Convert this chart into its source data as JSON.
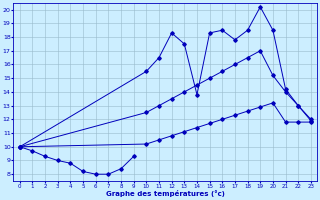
{
  "yticks": [
    8,
    9,
    10,
    11,
    12,
    13,
    14,
    15,
    16,
    17,
    18,
    19,
    20
  ],
  "xticks": [
    0,
    1,
    2,
    3,
    4,
    5,
    6,
    7,
    8,
    9,
    10,
    11,
    12,
    13,
    14,
    15,
    16,
    17,
    18,
    19,
    20,
    21,
    22,
    23
  ],
  "xlabel": "Graphe des températures (°c)",
  "line_color": "#0000bb",
  "bg_color": "#cceeff",
  "grid_color": "#99bbcc",
  "marker": "D",
  "markersize": 1.8,
  "ylim": [
    7.5,
    20.5
  ],
  "xlim": [
    -0.5,
    23.5
  ],
  "line1_x": [
    0,
    1,
    2,
    3,
    4,
    5,
    6,
    7,
    8,
    9
  ],
  "line1_y": [
    10,
    9.7,
    9.3,
    9.0,
    8.8,
    8.2,
    8.0,
    8.0,
    8.4,
    9.3
  ],
  "line2_x": [
    0,
    10,
    11,
    12,
    13,
    14,
    15,
    16,
    17,
    18,
    19,
    20,
    21,
    22,
    23
  ],
  "line2_y": [
    10,
    15.5,
    16.5,
    18.3,
    17.5,
    13.8,
    18.3,
    18.5,
    17.8,
    18.5,
    20.2,
    18.5,
    14.2,
    13.0,
    11.9
  ],
  "line3_x": [
    0,
    10,
    11,
    12,
    13,
    14,
    15,
    16,
    17,
    18,
    19,
    20,
    21,
    22,
    23
  ],
  "line3_y": [
    10,
    12.5,
    13.0,
    13.5,
    14.0,
    14.5,
    15.0,
    15.5,
    16.0,
    16.5,
    17.0,
    15.2,
    14.0,
    13.0,
    12.0
  ],
  "line4_x": [
    0,
    10,
    11,
    12,
    13,
    14,
    15,
    16,
    17,
    18,
    19,
    20,
    21,
    22,
    23
  ],
  "line4_y": [
    10,
    10.2,
    10.5,
    10.8,
    11.1,
    11.4,
    11.7,
    12.0,
    12.3,
    12.6,
    12.9,
    13.2,
    11.8,
    11.8,
    11.8
  ]
}
